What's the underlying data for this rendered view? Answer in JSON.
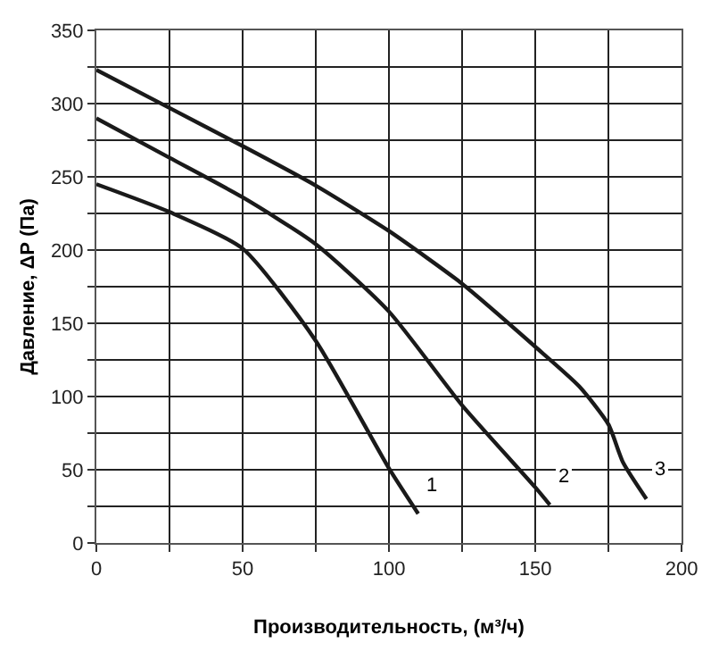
{
  "chart_data": {
    "type": "line",
    "xlabel": "Производительность, (м³/ч)",
    "ylabel": "Давление, ΔР (Па)",
    "xlim": [
      0,
      200
    ],
    "ylim": [
      0,
      350
    ],
    "xticks": [
      0,
      {
        "value": 25,
        "label": null
      },
      50,
      {
        "value": 75,
        "label": null
      },
      100,
      {
        "value": 125,
        "label": null
      },
      150,
      {
        "value": 175,
        "label": null
      },
      200
    ],
    "yticks": [
      0,
      {
        "value": 25,
        "label": null
      },
      50,
      {
        "value": 75,
        "label": null
      },
      100,
      {
        "value": 125,
        "label": null
      },
      150,
      {
        "value": 175,
        "label": null
      },
      200,
      {
        "value": 225,
        "label": null
      },
      250,
      {
        "value": 275,
        "label": null
      },
      300,
      {
        "value": 325,
        "label": null
      },
      350
    ],
    "grid": true,
    "legend": false,
    "marker": "none",
    "line_style": "solid",
    "series": [
      {
        "name": "1",
        "color": "#1a1a1a",
        "x": [
          0,
          25,
          50,
          75,
          100,
          110
        ],
        "values": [
          245,
          226,
          201,
          138,
          51,
          20
        ]
      },
      {
        "name": "2",
        "color": "#1a1a1a",
        "x": [
          0,
          25,
          50,
          75,
          100,
          125,
          150,
          155
        ],
        "values": [
          290,
          263,
          236,
          204,
          158,
          94,
          38,
          26
        ]
      },
      {
        "name": "3",
        "color": "#1a1a1a",
        "x": [
          0,
          25,
          50,
          75,
          100,
          125,
          150,
          165,
          175,
          180,
          188
        ],
        "values": [
          323,
          297,
          271,
          244,
          213,
          177,
          134,
          107,
          81,
          55,
          30
        ]
      }
    ]
  }
}
